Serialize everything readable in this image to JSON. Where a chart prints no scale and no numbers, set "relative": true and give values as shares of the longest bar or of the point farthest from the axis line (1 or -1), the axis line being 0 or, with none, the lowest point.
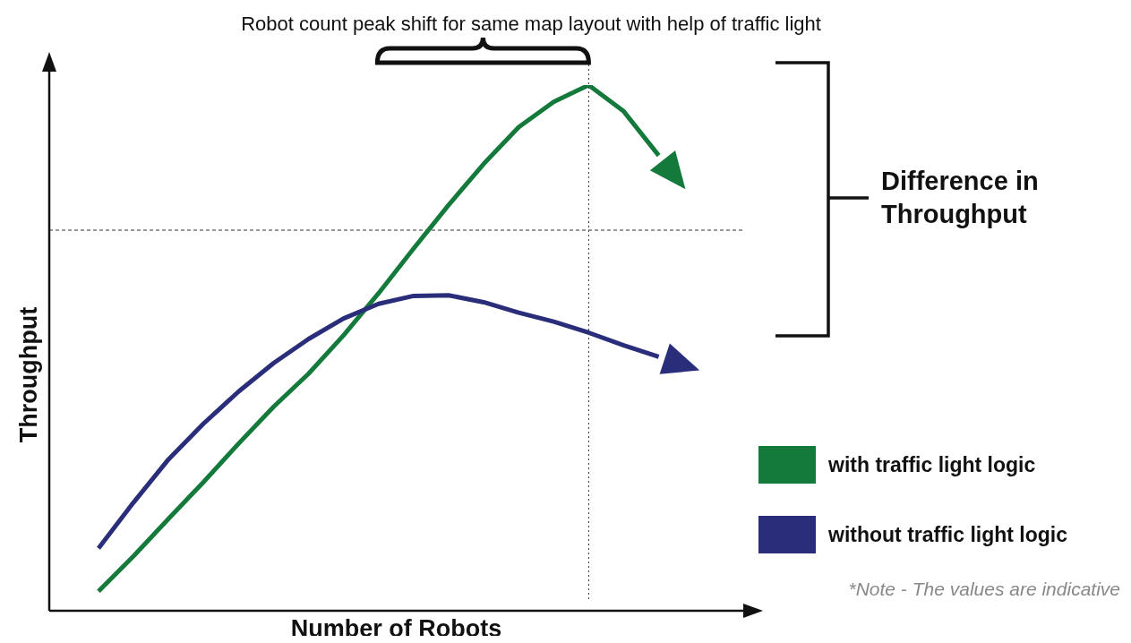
{
  "chart_data": {
    "type": "line",
    "relative": true,
    "title": "Robot count peak shift for same map layout with help of traffic light",
    "xlabel": "Number of Robots",
    "ylabel": "Throughput",
    "legend": "bottom right",
    "marker": "none",
    "line_style": "solid",
    "grid": false,
    "categories": [
      null,
      null,
      null,
      null,
      null,
      null,
      null,
      null,
      null,
      null,
      null,
      null,
      null,
      null,
      null,
      null,
      null
    ],
    "series": [
      {
        "name": "with traffic light logic",
        "color": "#147a3c",
        "values": [
          0.037,
          0.104,
          0.175,
          0.245,
          0.318,
          0.388,
          0.451,
          0.524,
          0.604,
          0.689,
          0.772,
          0.85,
          0.92,
          0.968,
          1,
          0.95,
          0.866
        ]
      },
      {
        "name": "without traffic light logic",
        "color": "#2a2e7a",
        "values": [
          0.119,
          0.206,
          0.288,
          0.356,
          0.417,
          0.471,
          0.517,
          0.556,
          0.584,
          0.599,
          0.6,
          0.587,
          0.567,
          0.55,
          0.529,
          0.505,
          0.483
        ]
      }
    ],
    "ref_lines": [
      {
        "axis": "y",
        "value": 0.724,
        "line_style": "dashed",
        "color": "#333333"
      }
    ],
    "annotations": [
      "Difference in Throughput",
      "*Note - The values are indicative"
    ]
  }
}
